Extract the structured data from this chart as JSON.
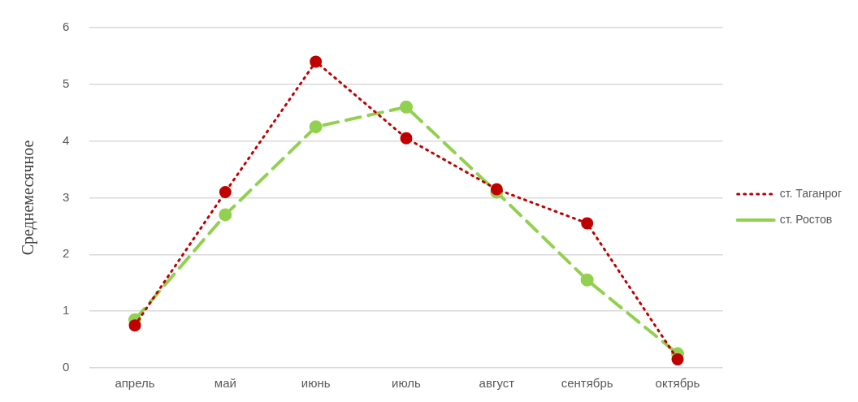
{
  "chart_data": {
    "type": "line",
    "ylabel": "Среднемесячное",
    "categories": [
      "апрель",
      "май",
      "июнь",
      "июль",
      "август",
      "сентябрь",
      "октябрь"
    ],
    "series": [
      {
        "name": "ст. Ростов",
        "color": "#92d050",
        "line_style": "dashed",
        "values": [
          0.85,
          2.7,
          4.25,
          4.6,
          3.1,
          1.55,
          0.25
        ]
      },
      {
        "name": "ст. Таганрог",
        "color": "#c00000",
        "line_style": "dotted",
        "values": [
          0.75,
          3.1,
          5.4,
          4.05,
          3.15,
          2.55,
          0.15
        ]
      }
    ],
    "ylim": [
      0,
      6
    ],
    "yticks": [
      0,
      1,
      2,
      3,
      4,
      5,
      6
    ],
    "grid": "y",
    "legend": "right",
    "marker": "circle"
  }
}
